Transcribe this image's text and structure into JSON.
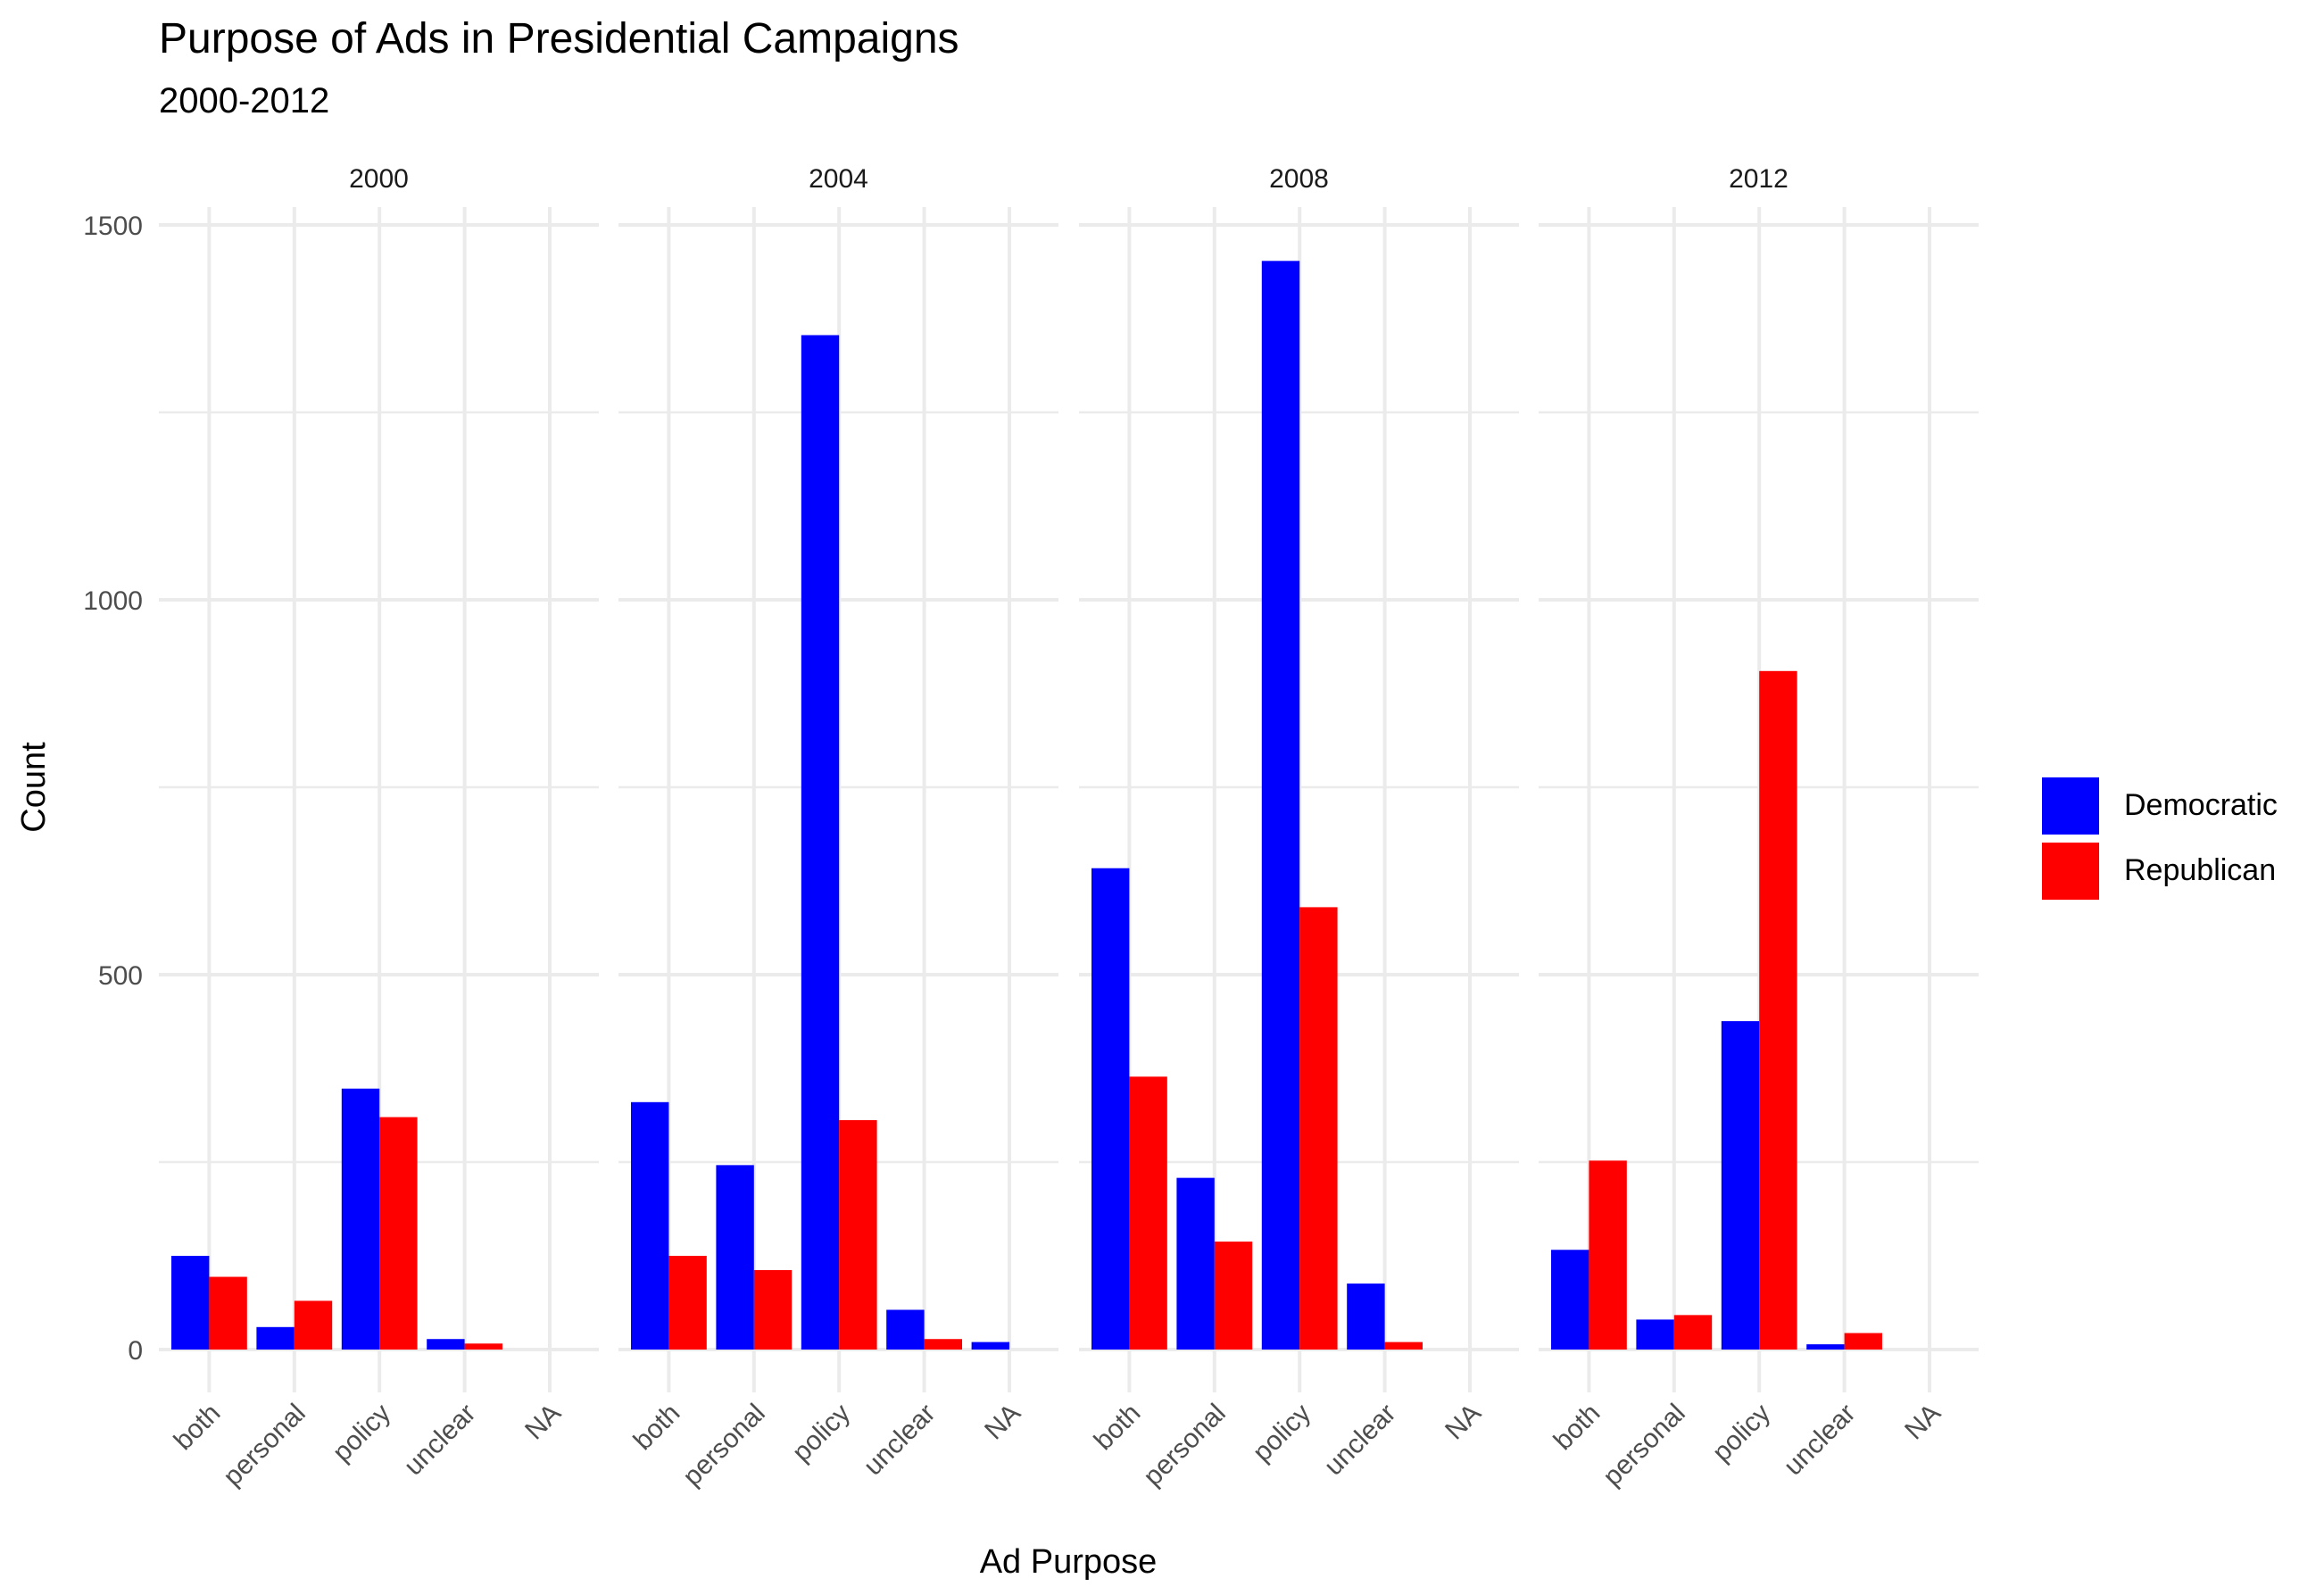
{
  "chart_data": {
    "type": "bar",
    "title": "Purpose of Ads in Presidential Campaigns",
    "subtitle": "2000-2012",
    "xlabel": "Ad Purpose",
    "ylabel": "Count",
    "ylim": [
      0,
      1500
    ],
    "yticks": [
      0,
      500,
      1000,
      1500
    ],
    "grid": true,
    "legend_position": "right",
    "categories": [
      "both",
      "personal",
      "policy",
      "unclear",
      "NA"
    ],
    "series_colors": {
      "Democratic": "#0000FF",
      "Republican": "#FF0000"
    },
    "panels": [
      {
        "label": "2000",
        "series": [
          {
            "name": "Democratic",
            "values": [
              125,
              30,
              348,
              14,
              null
            ]
          },
          {
            "name": "Republican",
            "values": [
              97,
              65,
              310,
              8,
              null
            ]
          }
        ]
      },
      {
        "label": "2004",
        "series": [
          {
            "name": "Democratic",
            "values": [
              330,
              246,
              1353,
              53,
              10
            ]
          },
          {
            "name": "Republican",
            "values": [
              125,
              106,
              306,
              14,
              null
            ]
          }
        ]
      },
      {
        "label": "2008",
        "series": [
          {
            "name": "Democratic",
            "values": [
              642,
              229,
              1452,
              88,
              null
            ]
          },
          {
            "name": "Republican",
            "values": [
              364,
              144,
              590,
              10,
              null
            ]
          }
        ]
      },
      {
        "label": "2012",
        "series": [
          {
            "name": "Democratic",
            "values": [
              133,
              40,
              438,
              7,
              null
            ]
          },
          {
            "name": "Republican",
            "values": [
              252,
              46,
              905,
              22,
              null
            ]
          }
        ]
      }
    ]
  }
}
